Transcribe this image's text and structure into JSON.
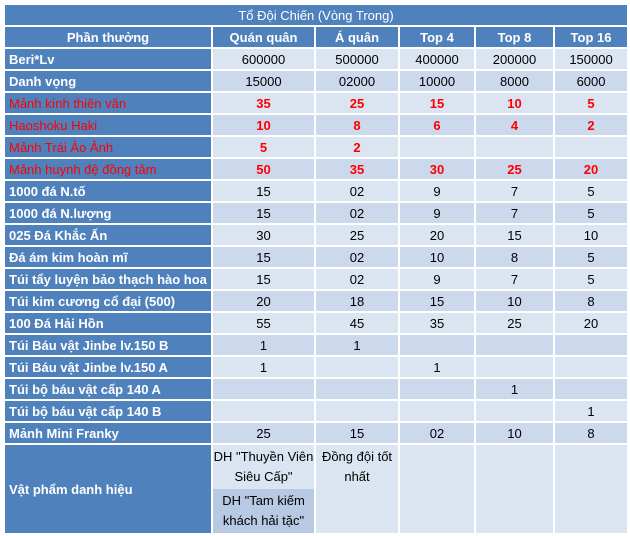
{
  "title": "Tổ Đội Chiến (Vòng Trong)",
  "header": {
    "reward": "Phần thưởng",
    "columns": [
      "Quán quân",
      "Á quân",
      "Top 4",
      "Top 8",
      "Top 16"
    ]
  },
  "rows": [
    {
      "label": "Beri*Lv",
      "red": false,
      "values": [
        "600000",
        "500000",
        "400000",
        "200000",
        "150000"
      ]
    },
    {
      "label": "Danh vọng",
      "red": false,
      "values": [
        "15000",
        "02000",
        "10000",
        "8000",
        "6000"
      ]
    },
    {
      "label": "Mảnh kính thiên văn",
      "red": true,
      "values": [
        "35",
        "25",
        "15",
        "10",
        "5"
      ]
    },
    {
      "label": "Haoshoku Haki",
      "red": true,
      "values": [
        "10",
        "8",
        "6",
        "4",
        "2"
      ]
    },
    {
      "label": "Mảnh Trái Ảo Ảnh",
      "red": true,
      "values": [
        "5",
        "2",
        "",
        "",
        ""
      ]
    },
    {
      "label": "Mảnh huynh đệ đồng tâm",
      "red": true,
      "values": [
        "50",
        "35",
        "30",
        "25",
        "20"
      ]
    },
    {
      "label": "1000 đá N.tố",
      "red": false,
      "values": [
        "15",
        "02",
        "9",
        "7",
        "5"
      ]
    },
    {
      "label": "1000 đá N.lượng",
      "red": false,
      "values": [
        "15",
        "02",
        "9",
        "7",
        "5"
      ]
    },
    {
      "label": "025 Đá Khắc Ấn",
      "red": false,
      "values": [
        "30",
        "25",
        "20",
        "15",
        "10"
      ]
    },
    {
      "label": "Đá ám kim hoàn mĩ",
      "red": false,
      "values": [
        "15",
        "02",
        "10",
        "8",
        "5"
      ]
    },
    {
      "label": "Túi tẩy luyện bảo thạch hào hoa",
      "red": false,
      "values": [
        "15",
        "02",
        "9",
        "7",
        "5"
      ]
    },
    {
      "label": "Túi kim cương cổ đại (500)",
      "red": false,
      "values": [
        "20",
        "18",
        "15",
        "10",
        "8"
      ]
    },
    {
      "label": "100 Đá Hải Hồn",
      "red": false,
      "values": [
        "55",
        "45",
        "35",
        "25",
        "20"
      ]
    },
    {
      "label": "Túi Báu vật Jinbe lv.150 B",
      "red": false,
      "values": [
        "1",
        "1",
        "",
        "",
        ""
      ]
    },
    {
      "label": "Túi Báu vật Jinbe lv.150 A",
      "red": false,
      "values": [
        "1",
        "",
        "1",
        "",
        ""
      ]
    },
    {
      "label": "Túi bộ báu vật cấp 140 A",
      "red": false,
      "values": [
        "",
        "",
        "",
        "1",
        ""
      ]
    },
    {
      "label": "Túi bộ báu vật cấp 140 B",
      "red": false,
      "values": [
        "",
        "",
        "",
        "",
        "1"
      ]
    },
    {
      "label": "Mảnh Mini Franky",
      "red": false,
      "values": [
        "25",
        "15",
        "02",
        "10",
        "8"
      ]
    }
  ],
  "title_row": {
    "label": "Vật phẩm danh hiệu",
    "champion_a": "DH \"Thuyền Viên Siêu Cấp\"",
    "champion_b": "DH \"Tam kiếm khách hải tặc\"",
    "runner_up": "Đồng đội tốt nhất"
  },
  "colors": {
    "header_blue": "#4f81bd",
    "cell_light": "#dbe5f1",
    "highlight_red": "#ff0000"
  }
}
